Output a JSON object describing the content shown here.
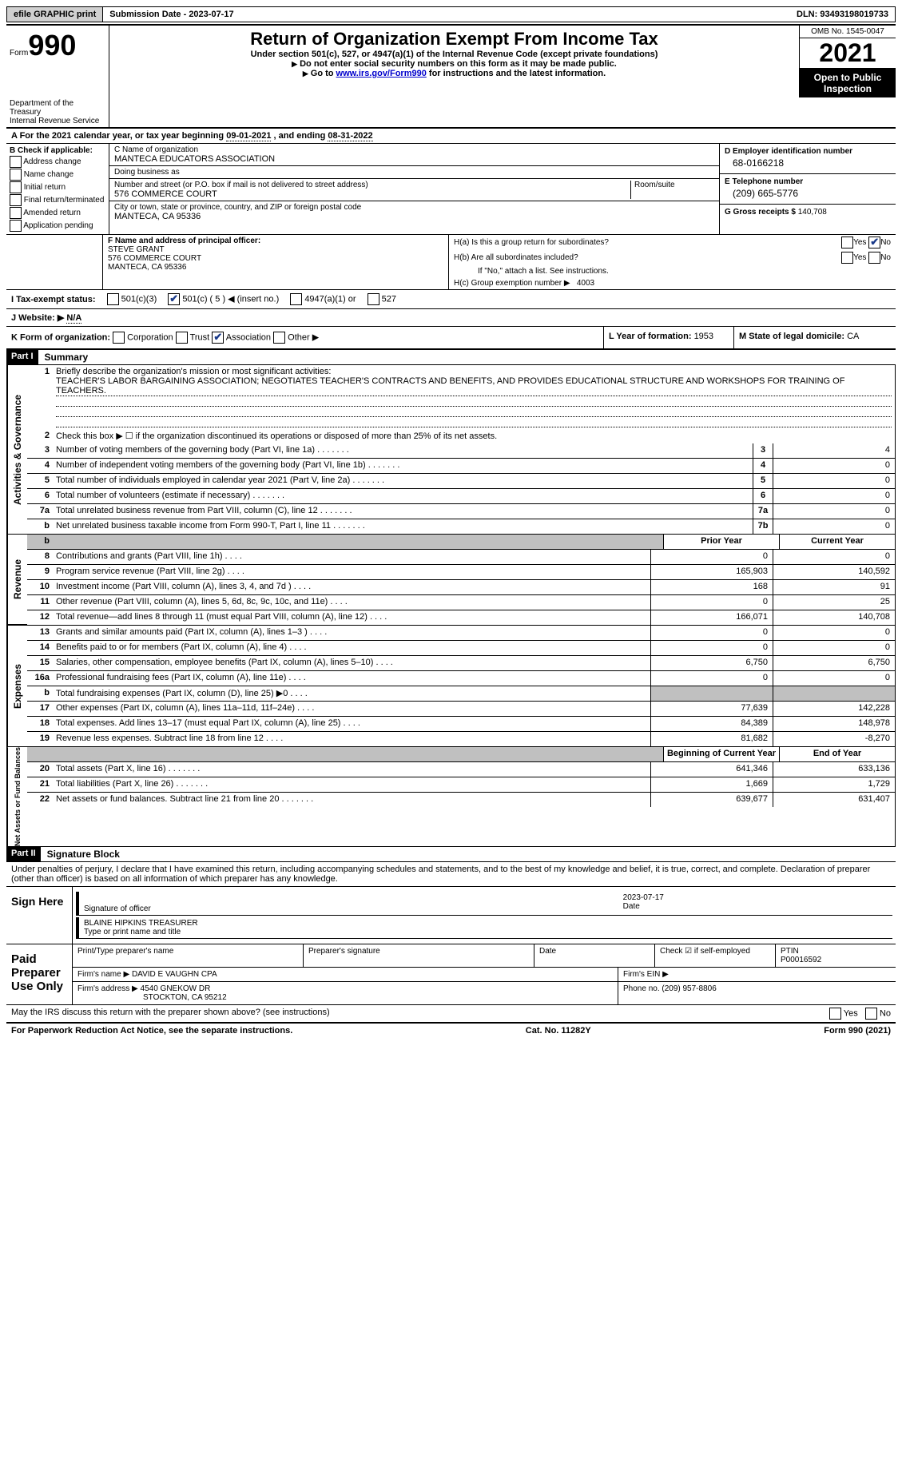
{
  "top": {
    "efile": "efile GRAPHIC print",
    "submission": "Submission Date - 2023-07-17",
    "dln": "DLN: 93493198019733"
  },
  "header": {
    "form_word": "Form",
    "form_number": "990",
    "title": "Return of Organization Exempt From Income Tax",
    "subtitle": "Under section 501(c), 527, or 4947(a)(1) of the Internal Revenue Code (except private foundations)",
    "line1": "Do not enter social security numbers on this form as it may be made public.",
    "line2_pre": "Go to ",
    "line2_link": "www.irs.gov/Form990",
    "line2_post": " for instructions and the latest information.",
    "omb": "OMB No. 1545-0047",
    "year": "2021",
    "open_inspection": "Open to Public Inspection",
    "dept": "Department of the Treasury",
    "irs": "Internal Revenue Service"
  },
  "period": {
    "label_a": "A For the 2021 calendar year, or tax year beginning ",
    "begin": "09-01-2021",
    "mid": " , and ending ",
    "end": "08-31-2022"
  },
  "block_b": {
    "label": "B Check if applicable:",
    "opts": [
      "Address change",
      "Name change",
      "Initial return",
      "Final return/terminated",
      "Amended return",
      "Application pending"
    ]
  },
  "block_c": {
    "name_label": "C Name of organization",
    "name": "MANTECA EDUCATORS ASSOCIATION",
    "dba_label": "Doing business as",
    "dba": "",
    "street_label": "Number and street (or P.O. box if mail is not delivered to street address)",
    "street": "576 COMMERCE COURT",
    "room_label": "Room/suite",
    "room": "",
    "city_label": "City or town, state or province, country, and ZIP or foreign postal code",
    "city": "MANTECA, CA  95336"
  },
  "block_d": {
    "ein_label": "D Employer identification number",
    "ein": "68-0166218",
    "phone_label": "E Telephone number",
    "phone": "(209) 665-5776",
    "gross_label": "G Gross receipts $ ",
    "gross": "140,708"
  },
  "block_f": {
    "label": "F Name and address of principal officer:",
    "name": "STEVE GRANT",
    "street": "576 COMMERCE COURT",
    "city": "MANTECA, CA  95336"
  },
  "block_h": {
    "a_label": "H(a)  Is this a group return for subordinates?",
    "b_label": "H(b)  Are all subordinates included?",
    "note": "If \"No,\" attach a list. See instructions.",
    "c_label": "H(c)  Group exemption number ▶",
    "c_val": "4003",
    "yes": "Yes",
    "no": "No"
  },
  "row_i": {
    "label": "I  Tax-exempt status:",
    "c3": "501(c)(3)",
    "c_paren": "501(c) ( 5 ) ◀ (insert no.)",
    "a1": "4947(a)(1) or",
    "527": "527"
  },
  "row_j": {
    "label": "J  Website: ▶",
    "val": "N/A"
  },
  "row_k": {
    "label": "K Form of organization:",
    "corp": "Corporation",
    "trust": "Trust",
    "assoc": "Association",
    "other": "Other ▶"
  },
  "row_l": {
    "label": "L Year of formation: ",
    "val": "1953"
  },
  "row_m": {
    "label": "M State of legal domicile: ",
    "val": "CA"
  },
  "part1": {
    "header": "Part I",
    "title": "Summary",
    "line1_label": "Briefly describe the organization's mission or most significant activities:",
    "mission": "TEACHER'S LABOR BARGAINING ASSOCIATION; NEGOTIATES TEACHER'S CONTRACTS AND BENEFITS, AND PROVIDES EDUCATIONAL STRUCTURE AND WORKSHOPS FOR TRAINING OF TEACHERS.",
    "line2": "Check this box ▶ ☐ if the organization discontinued its operations or disposed of more than 25% of its net assets.",
    "rows_gov": [
      {
        "n": "3",
        "t": "Number of voting members of the governing body (Part VI, line 1a)",
        "box": "3",
        "v": "4"
      },
      {
        "n": "4",
        "t": "Number of independent voting members of the governing body (Part VI, line 1b)",
        "box": "4",
        "v": "0"
      },
      {
        "n": "5",
        "t": "Total number of individuals employed in calendar year 2021 (Part V, line 2a)",
        "box": "5",
        "v": "0"
      },
      {
        "n": "6",
        "t": "Total number of volunteers (estimate if necessary)",
        "box": "6",
        "v": "0"
      },
      {
        "n": "7a",
        "t": "Total unrelated business revenue from Part VIII, column (C), line 12",
        "box": "7a",
        "v": "0"
      },
      {
        "n": "b",
        "t": "Net unrelated business taxable income from Form 990-T, Part I, line 11",
        "box": "7b",
        "v": "0"
      }
    ],
    "prior_label": "Prior Year",
    "current_label": "Current Year",
    "rows_rev": [
      {
        "n": "8",
        "t": "Contributions and grants (Part VIII, line 1h)",
        "p": "0",
        "c": "0"
      },
      {
        "n": "9",
        "t": "Program service revenue (Part VIII, line 2g)",
        "p": "165,903",
        "c": "140,592"
      },
      {
        "n": "10",
        "t": "Investment income (Part VIII, column (A), lines 3, 4, and 7d )",
        "p": "168",
        "c": "91"
      },
      {
        "n": "11",
        "t": "Other revenue (Part VIII, column (A), lines 5, 6d, 8c, 9c, 10c, and 11e)",
        "p": "0",
        "c": "25"
      },
      {
        "n": "12",
        "t": "Total revenue—add lines 8 through 11 (must equal Part VIII, column (A), line 12)",
        "p": "166,071",
        "c": "140,708"
      }
    ],
    "rows_exp": [
      {
        "n": "13",
        "t": "Grants and similar amounts paid (Part IX, column (A), lines 1–3 )",
        "p": "0",
        "c": "0"
      },
      {
        "n": "14",
        "t": "Benefits paid to or for members (Part IX, column (A), line 4)",
        "p": "0",
        "c": "0"
      },
      {
        "n": "15",
        "t": "Salaries, other compensation, employee benefits (Part IX, column (A), lines 5–10)",
        "p": "6,750",
        "c": "6,750"
      },
      {
        "n": "16a",
        "t": "Professional fundraising fees (Part IX, column (A), line 11e)",
        "p": "0",
        "c": "0"
      },
      {
        "n": "b",
        "t": "Total fundraising expenses (Part IX, column (D), line 25) ▶0",
        "p": "",
        "c": "",
        "shaded": true
      },
      {
        "n": "17",
        "t": "Other expenses (Part IX, column (A), lines 11a–11d, 11f–24e)",
        "p": "77,639",
        "c": "142,228"
      },
      {
        "n": "18",
        "t": "Total expenses. Add lines 13–17 (must equal Part IX, column (A), line 25)",
        "p": "84,389",
        "c": "148,978"
      },
      {
        "n": "19",
        "t": "Revenue less expenses. Subtract line 18 from line 12",
        "p": "81,682",
        "c": "-8,270"
      }
    ],
    "begin_label": "Beginning of Current Year",
    "end_label": "End of Year",
    "rows_net": [
      {
        "n": "20",
        "t": "Total assets (Part X, line 16)",
        "p": "641,346",
        "c": "633,136"
      },
      {
        "n": "21",
        "t": "Total liabilities (Part X, line 26)",
        "p": "1,669",
        "c": "1,729"
      },
      {
        "n": "22",
        "t": "Net assets or fund balances. Subtract line 21 from line 20",
        "p": "639,677",
        "c": "631,407"
      }
    ],
    "vert_gov": "Activities & Governance",
    "vert_rev": "Revenue",
    "vert_exp": "Expenses",
    "vert_net": "Net Assets or Fund Balances"
  },
  "part2": {
    "header": "Part II",
    "title": "Signature Block",
    "declaration": "Under penalties of perjury, I declare that I have examined this return, including accompanying schedules and statements, and to the best of my knowledge and belief, it is true, correct, and complete. Declaration of preparer (other than officer) is based on all information of which preparer has any knowledge.",
    "sign_here": "Sign Here",
    "sig_officer": "Signature of officer",
    "date_label": "Date",
    "sig_date": "2023-07-17",
    "name_title": "BLAINE HIPKINS TREASURER",
    "type_name": "Type or print name and title",
    "paid_label": "Paid Preparer Use Only",
    "print_name_label": "Print/Type preparer's name",
    "prep_sig_label": "Preparer's signature",
    "check_if": "Check ☑ if self-employed",
    "ptin_label": "PTIN",
    "ptin": "P00016592",
    "firm_name_label": "Firm's name    ▶",
    "firm_name": "DAVID E VAUGHN CPA",
    "firm_ein_label": "Firm's EIN ▶",
    "firm_addr_label": "Firm's address ▶",
    "firm_addr1": "4540 GNEKOW DR",
    "firm_addr2": "STOCKTON, CA  95212",
    "phone_label": "Phone no. ",
    "phone": "(209) 957-8806"
  },
  "footer": {
    "discuss": "May the IRS discuss this return with the preparer shown above? (see instructions)",
    "yes": "Yes",
    "no": "No",
    "paperwork": "For Paperwork Reduction Act Notice, see the separate instructions.",
    "cat": "Cat. No. 11282Y",
    "form": "Form 990 (2021)"
  }
}
